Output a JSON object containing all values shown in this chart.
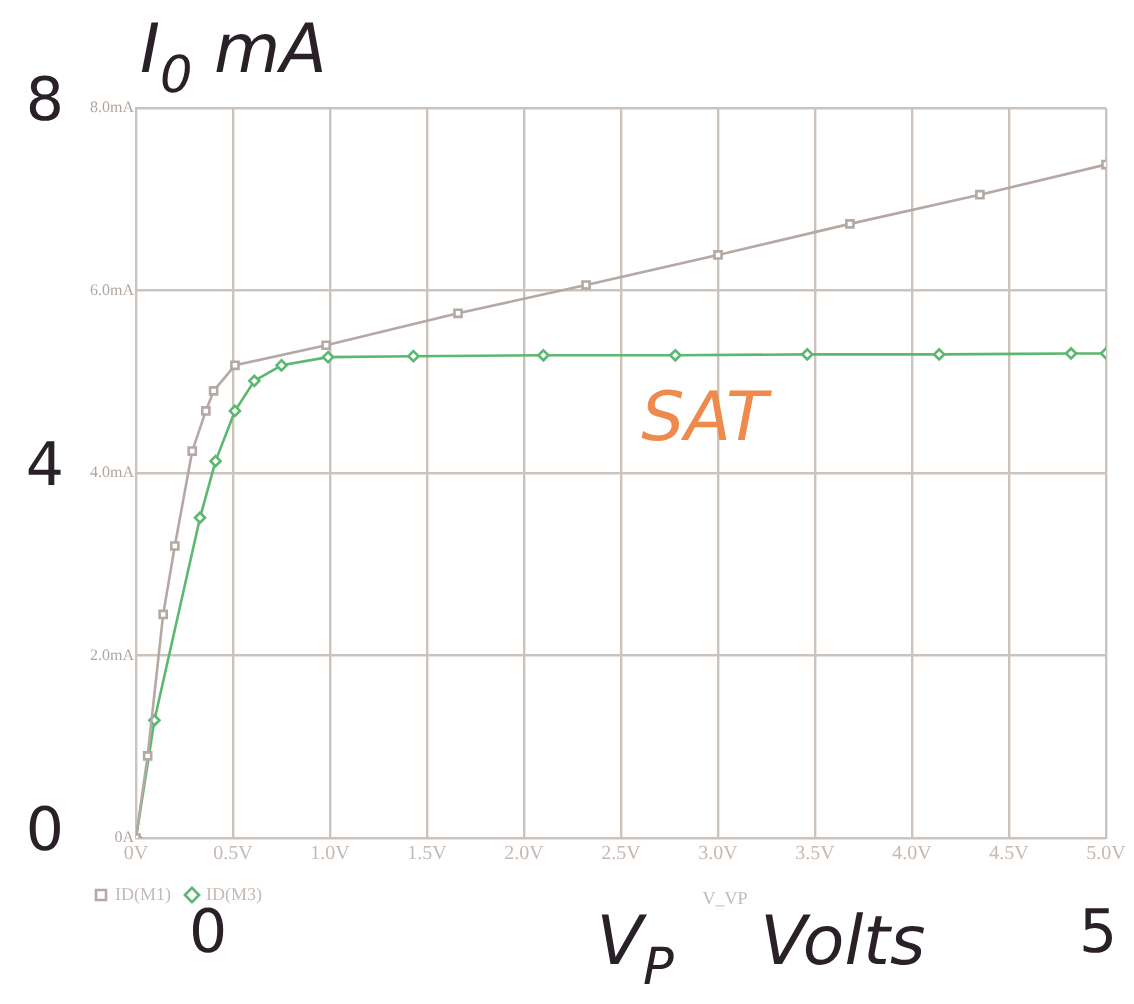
{
  "chart_data": {
    "type": "line",
    "xlabel": "V_VP",
    "ylabel": "I$_{0}$ mA",
    "xlim": [
      0,
      5
    ],
    "xticks": [
      {
        "value": 0,
        "label": "0V"
      },
      {
        "value": 0.5,
        "label": "0.5V"
      },
      {
        "value": 1,
        "label": "1.0V"
      },
      {
        "value": 1.5,
        "label": "1.5V"
      },
      {
        "value": 2,
        "label": "2.0V"
      },
      {
        "value": 2.5,
        "label": "2.5V"
      },
      {
        "value": 3,
        "label": "3.0V"
      },
      {
        "value": 3.5,
        "label": "3.5V"
      },
      {
        "value": 4,
        "label": "4.0V"
      },
      {
        "value": 4.5,
        "label": "4.5V"
      },
      {
        "value": 5,
        "label": "5.0V"
      }
    ],
    "ylim": [
      0,
      8
    ],
    "yticks": [
      {
        "value": 0,
        "label": "0A"
      },
      {
        "value": 2,
        "label": "2.0mA"
      },
      {
        "value": 4,
        "label": "4.0mA"
      },
      {
        "value": 6,
        "label": "6.0mA"
      },
      {
        "value": 8,
        "label": "8.0mA"
      }
    ],
    "grid": true,
    "legend": "bottom left",
    "series": [
      {
        "name": "ID(M1)",
        "color": "#b4a9a4",
        "marker": "square",
        "x": [
          0,
          0.06,
          0.14,
          0.2,
          0.29,
          0.36,
          0.4,
          0.51,
          0.98,
          1.66,
          2.32,
          3.0,
          3.68,
          4.35,
          5.0
        ],
        "values": [
          0,
          0.9,
          2.45,
          3.2,
          4.24,
          4.68,
          4.9,
          5.18,
          5.4,
          5.75,
          6.06,
          6.39,
          6.73,
          7.05,
          7.38
        ]
      },
      {
        "name": "ID(M3)",
        "color": "#5cb870",
        "marker": "diamond",
        "x": [
          0,
          0.095,
          0.33,
          0.41,
          0.51,
          0.61,
          0.75,
          0.99,
          1.43,
          2.1,
          2.78,
          3.46,
          4.14,
          4.82,
          5.0
        ],
        "values": [
          0,
          1.29,
          3.51,
          4.13,
          4.68,
          5.01,
          5.18,
          5.27,
          5.28,
          5.29,
          5.29,
          5.3,
          5.3,
          5.31,
          5.31
        ]
      }
    ],
    "annotations": [
      "8",
      "4",
      "0",
      "0",
      "5",
      "V$_{P}$    Volts",
      "SAT"
    ]
  }
}
